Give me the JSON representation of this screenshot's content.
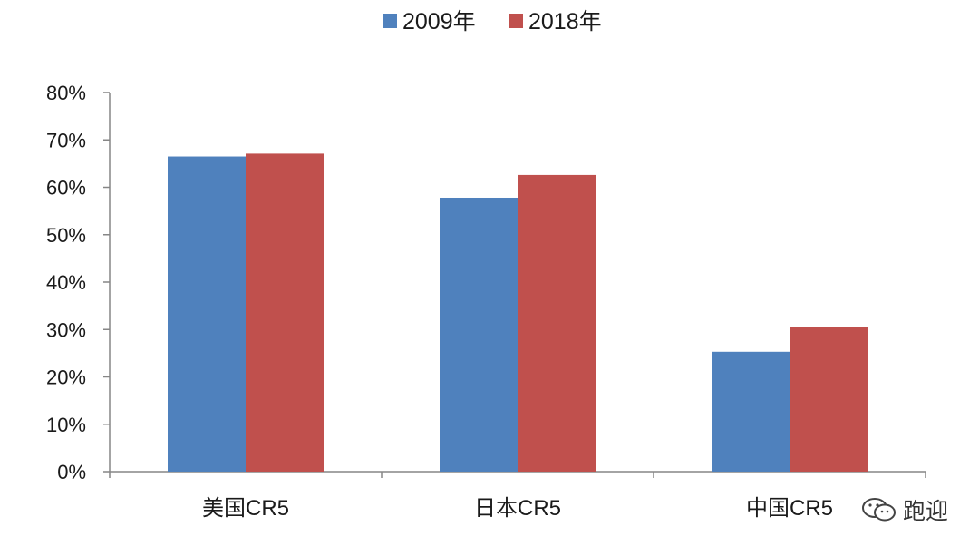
{
  "chart_data": {
    "type": "bar",
    "categories": [
      "美国CR5",
      "日本CR5",
      "中国CR5"
    ],
    "series": [
      {
        "name": "2009年",
        "color": "#4F81BD",
        "values": [
          66.5,
          57.8,
          25.3
        ]
      },
      {
        "name": "2018年",
        "color": "#C0504D",
        "values": [
          67.1,
          62.6,
          30.5
        ]
      }
    ],
    "ylim": [
      0,
      80
    ],
    "yticks": [
      "0%",
      "10%",
      "20%",
      "30%",
      "40%",
      "50%",
      "60%",
      "70%",
      "80%"
    ],
    "legend": "top-center",
    "grid": false,
    "title": "",
    "xlabel": "",
    "ylabel": ""
  },
  "watermark": {
    "text": "跑迎",
    "icon": "wechat-icon"
  }
}
